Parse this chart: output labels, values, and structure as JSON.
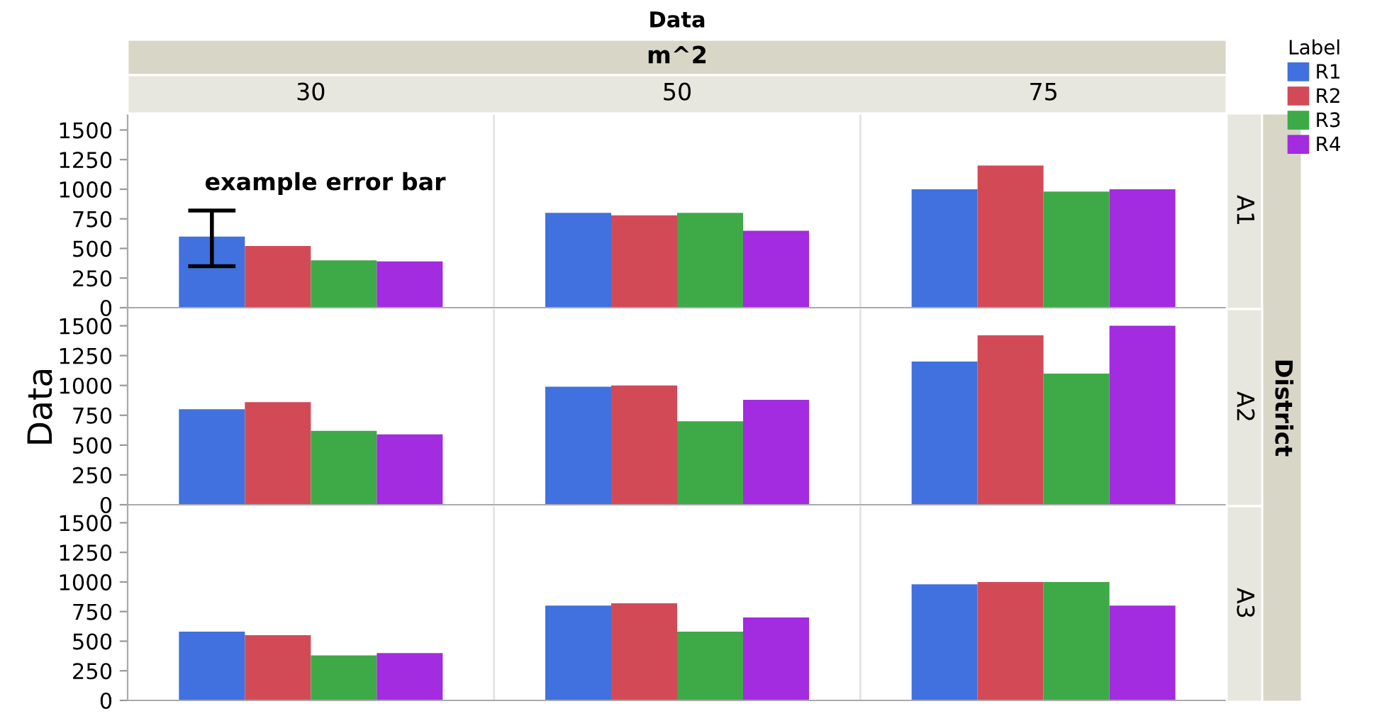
{
  "chart_data": [
    {
      "type": "bar",
      "title": "Data",
      "subtitle": "m^2",
      "ylabel": "Data",
      "legend_title": "Label",
      "legend": "top right",
      "categories": [
        "30",
        "50",
        "75"
      ],
      "series": [
        {
          "name": "R1",
          "color": "#4171de",
          "values": [
            600,
            800,
            1000
          ],
          "errors": [
            [
              350,
              820
            ],
            null,
            null
          ]
        },
        {
          "name": "R2",
          "color": "#d34a57",
          "values": [
            520,
            780,
            1200
          ]
        },
        {
          "name": "R3",
          "color": "#3daa47",
          "values": [
            400,
            800,
            980
          ]
        },
        {
          "name": "R4",
          "color": "#a32be0",
          "values": [
            390,
            650,
            1000
          ]
        }
      ],
      "ylim": [
        0,
        1640
      ],
      "yticks": [
        0,
        250,
        500,
        750,
        1000,
        1250,
        1500
      ],
      "annotations": [
        "A1",
        "District",
        "example error bar"
      ]
    },
    {
      "type": "bar",
      "categories": [
        null,
        null,
        null
      ],
      "series": [
        {
          "color": "#4171de",
          "values": [
            800,
            990,
            1200
          ]
        },
        {
          "color": "#d34a57",
          "values": [
            860,
            1000,
            1420
          ]
        },
        {
          "color": "#3daa47",
          "values": [
            620,
            700,
            1100
          ]
        },
        {
          "color": "#a32be0",
          "values": [
            590,
            880,
            1500
          ]
        }
      ],
      "ylim": [
        0,
        1640
      ],
      "yticks": [
        0,
        250,
        500,
        750,
        1000,
        1250,
        1500
      ],
      "annotations": [
        "A2"
      ]
    },
    {
      "type": "bar",
      "categories": [
        null,
        null,
        null
      ],
      "series": [
        {
          "color": "#4171de",
          "values": [
            580,
            800,
            980
          ]
        },
        {
          "color": "#d34a57",
          "values": [
            550,
            820,
            1000
          ]
        },
        {
          "color": "#3daa47",
          "values": [
            380,
            580,
            1000
          ]
        },
        {
          "color": "#a32be0",
          "values": [
            400,
            700,
            800
          ]
        }
      ],
      "ylim": [
        0,
        1640
      ],
      "yticks": [
        0,
        250,
        500,
        750,
        1000,
        1250,
        1500
      ],
      "annotations": [
        "A3"
      ]
    }
  ]
}
